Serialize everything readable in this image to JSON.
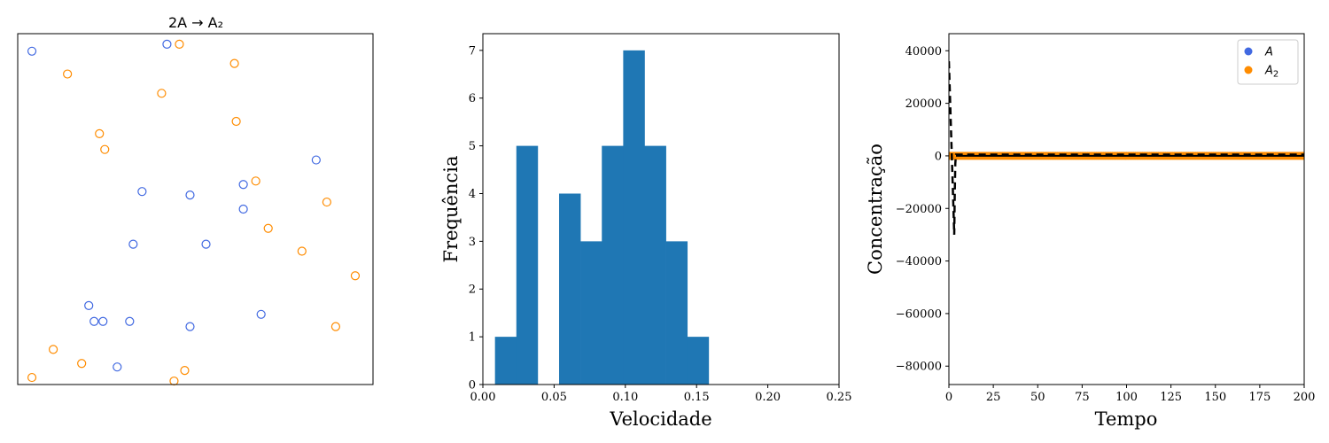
{
  "chart_data": [
    {
      "type": "scatter",
      "title": "2A → A₂",
      "xlim": [
        0,
        1
      ],
      "ylim": [
        0,
        1
      ],
      "axes_visible": false,
      "marker": "hollow-circle",
      "series": [
        {
          "color": "#4169e1",
          "points": [
            [
              0.04,
              0.95
            ],
            [
              0.42,
              0.97
            ],
            [
              0.84,
              0.64
            ],
            [
              0.35,
              0.55
            ],
            [
              0.485,
              0.54
            ],
            [
              0.635,
              0.57
            ],
            [
              0.635,
              0.5
            ],
            [
              0.325,
              0.4
            ],
            [
              0.53,
              0.4
            ],
            [
              0.2,
              0.225
            ],
            [
              0.215,
              0.18
            ],
            [
              0.24,
              0.18
            ],
            [
              0.315,
              0.18
            ],
            [
              0.685,
              0.2
            ],
            [
              0.485,
              0.165
            ],
            [
              0.28,
              0.05
            ]
          ]
        },
        {
          "color": "#ff8c00",
          "points": [
            [
              0.455,
              0.97
            ],
            [
              0.61,
              0.915
            ],
            [
              0.14,
              0.885
            ],
            [
              0.405,
              0.83
            ],
            [
              0.615,
              0.75
            ],
            [
              0.23,
              0.715
            ],
            [
              0.245,
              0.67
            ],
            [
              0.67,
              0.58
            ],
            [
              0.87,
              0.52
            ],
            [
              0.705,
              0.445
            ],
            [
              0.8,
              0.38
            ],
            [
              0.95,
              0.31
            ],
            [
              0.895,
              0.165
            ],
            [
              0.1,
              0.1
            ],
            [
              0.18,
              0.06
            ],
            [
              0.47,
              0.04
            ],
            [
              0.04,
              0.02
            ],
            [
              0.44,
              0.01
            ]
          ]
        }
      ]
    },
    {
      "type": "histogram",
      "xlabel": "Velocidade",
      "ylabel": "Frequência",
      "xlim": [
        0,
        0.25
      ],
      "ylim": [
        0,
        7.35
      ],
      "xticks": [
        "0.00",
        "0.05",
        "0.10",
        "0.15",
        "0.20",
        "0.25"
      ],
      "yticks": [
        "0",
        "1",
        "2",
        "3",
        "4",
        "5",
        "6",
        "7"
      ],
      "color": "#1f77b4",
      "bin_start": 0.0085,
      "bin_width": 0.015,
      "counts": [
        1,
        5,
        0,
        4,
        3,
        5,
        7,
        5,
        3,
        1
      ]
    },
    {
      "type": "line",
      "xlabel": "Tempo",
      "ylabel": "Concentração",
      "xlim": [
        0,
        200
      ],
      "ylim": [
        -87000,
        46500
      ],
      "xticks": [
        "0",
        "25",
        "50",
        "75",
        "100",
        "125",
        "150",
        "175",
        "200"
      ],
      "yticks": [
        "−80000",
        "−60000",
        "−40000",
        "−20000",
        "0",
        "20000",
        "40000"
      ],
      "legend_position": "top-right",
      "legend": [
        {
          "label": "A",
          "sub": "",
          "color": "#4169e1"
        },
        {
          "label": "A",
          "sub": "2",
          "color": "#ff8c00"
        }
      ],
      "dashed_line": [
        [
          0,
          36000
        ],
        [
          0.5,
          25000
        ],
        [
          1,
          14000
        ],
        [
          1.5,
          3000
        ],
        [
          2,
          -8000
        ],
        [
          2.5,
          -19000
        ],
        [
          3,
          -30000
        ],
        [
          3.3,
          -14000
        ],
        [
          3.6,
          -3000
        ],
        [
          3.9,
          0
        ],
        [
          4,
          500
        ],
        [
          200,
          500
        ]
      ],
      "solid_black": [
        [
          4,
          0
        ],
        [
          200,
          0
        ]
      ],
      "a2_points_start": 0,
      "a2_points_end": 200,
      "a2_points_step": 1,
      "a2_value": 0
    }
  ]
}
